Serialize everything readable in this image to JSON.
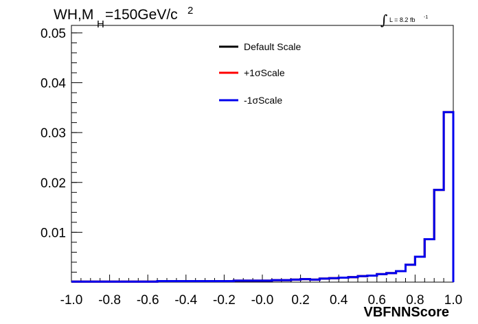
{
  "chart_data": {
    "type": "line",
    "title_main": "WH,M",
    "title_sub": "H",
    "title_rest": "=150GeV/c",
    "title_sup": "2",
    "lumi_integral": "∫",
    "lumi_text": "L = 8.2 fb",
    "lumi_sup": "-1",
    "xlabel": "VBFNNScore",
    "ylabel": "",
    "xlim": [
      -1.0,
      1.0
    ],
    "ylim": [
      0,
      0.0515
    ],
    "x_ticks": [
      "-1.0",
      "-0.8",
      "-0.6",
      "-0.4",
      "-0.2",
      "-0.0",
      "0.2",
      "0.4",
      "0.6",
      "0.8",
      "1.0"
    ],
    "x_tick_values": [
      -1.0,
      -0.8,
      -0.6,
      -0.4,
      -0.2,
      0.0,
      0.2,
      0.4,
      0.6,
      0.8,
      1.0
    ],
    "y_ticks": [
      "0.01",
      "0.02",
      "0.03",
      "0.04",
      "0.05"
    ],
    "y_tick_values": [
      0.01,
      0.02,
      0.03,
      0.04,
      0.05
    ],
    "grid": false,
    "legend_position": "top-center",
    "bin_edges": [
      -1.0,
      -0.95,
      -0.9,
      -0.85,
      -0.8,
      -0.75,
      -0.7,
      -0.65,
      -0.6,
      -0.55,
      -0.5,
      -0.45,
      -0.4,
      -0.35,
      -0.3,
      -0.25,
      -0.2,
      -0.15,
      -0.1,
      -0.05,
      0.0,
      0.05,
      0.1,
      0.15,
      0.2,
      0.25,
      0.3,
      0.35,
      0.4,
      0.45,
      0.5,
      0.55,
      0.6,
      0.65,
      0.7,
      0.75,
      0.8,
      0.85,
      0.9,
      0.95,
      1.0
    ],
    "series": [
      {
        "name": "Default Scale",
        "color": "#000000",
        "values": [
          0.0001,
          0.0001,
          0.0001,
          0.0001,
          0.0001,
          0.0001,
          0.0001,
          0.0001,
          0.0001,
          0.0002,
          0.0002,
          0.0002,
          0.0002,
          0.0002,
          0.0002,
          0.0002,
          0.0002,
          0.0003,
          0.0003,
          0.0003,
          0.0003,
          0.0004,
          0.0004,
          0.0005,
          0.0006,
          0.0005,
          0.0007,
          0.0008,
          0.0009,
          0.001,
          0.0012,
          0.0013,
          0.0016,
          0.0018,
          0.0022,
          0.0035,
          0.0051,
          0.0086,
          0.0185,
          0.0341
        ]
      },
      {
        "name": "+1σScale",
        "color": "#ff0000",
        "values": [
          0.0001,
          0.0001,
          0.0001,
          0.0001,
          0.0001,
          0.0001,
          0.0001,
          0.0001,
          0.0001,
          0.0002,
          0.0002,
          0.0002,
          0.0002,
          0.0002,
          0.0002,
          0.0002,
          0.0002,
          0.0003,
          0.0003,
          0.0003,
          0.0003,
          0.0004,
          0.0004,
          0.0005,
          0.0006,
          0.0005,
          0.0007,
          0.0008,
          0.0009,
          0.001,
          0.0012,
          0.0013,
          0.0016,
          0.0018,
          0.0022,
          0.0035,
          0.0051,
          0.0086,
          0.0185,
          0.0341
        ]
      },
      {
        "name": "-1σScale",
        "color": "#0000ee",
        "values": [
          0.0001,
          0.0001,
          0.0001,
          0.0001,
          0.0001,
          0.0001,
          0.0001,
          0.0001,
          0.0001,
          0.0002,
          0.0002,
          0.0002,
          0.0002,
          0.0002,
          0.0002,
          0.0002,
          0.0002,
          0.0003,
          0.0003,
          0.0003,
          0.0003,
          0.0004,
          0.0004,
          0.0005,
          0.0006,
          0.0005,
          0.0007,
          0.0008,
          0.0009,
          0.001,
          0.0012,
          0.0013,
          0.0016,
          0.0018,
          0.0022,
          0.0035,
          0.0051,
          0.0086,
          0.0185,
          0.0341
        ]
      }
    ]
  }
}
